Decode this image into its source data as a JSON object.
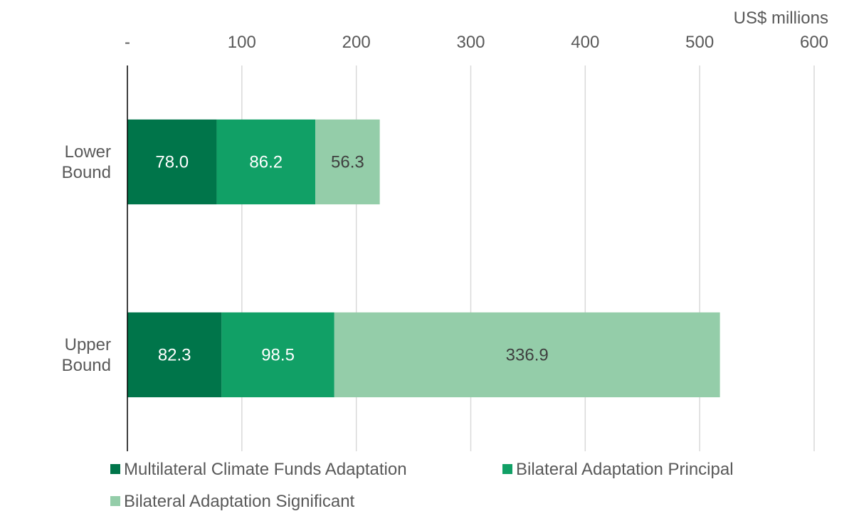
{
  "chart_data": {
    "type": "bar",
    "orientation": "horizontal",
    "stacked": true,
    "unit_label": "US$ millions",
    "xlim": [
      0,
      600
    ],
    "x_ticks": [
      0,
      100,
      200,
      300,
      400,
      500,
      600
    ],
    "x_tick_labels": [
      "-",
      "100",
      "200",
      "300",
      "400",
      "500",
      "600"
    ],
    "categories": [
      [
        "Lower",
        "Bound"
      ],
      [
        "Upper",
        "Bound"
      ]
    ],
    "series": [
      {
        "name": "Multilateral Climate Funds Adaptation",
        "color": "#00754a",
        "label_color": "#ffffff",
        "values": [
          78.0,
          82.3
        ],
        "labels": [
          "78.0",
          "82.3"
        ]
      },
      {
        "name": "Bilateral Adaptation Principal",
        "color": "#11a066",
        "label_color": "#ffffff",
        "values": [
          86.2,
          98.5
        ],
        "labels": [
          "86.2",
          "98.5"
        ]
      },
      {
        "name": "Bilateral Adaptation Significant",
        "color": "#94cda9",
        "label_color": "#3f3f3f",
        "values": [
          56.3,
          336.9
        ],
        "labels": [
          "56.3",
          "336.9"
        ]
      }
    ],
    "grid": true,
    "legend_position": "bottom"
  }
}
